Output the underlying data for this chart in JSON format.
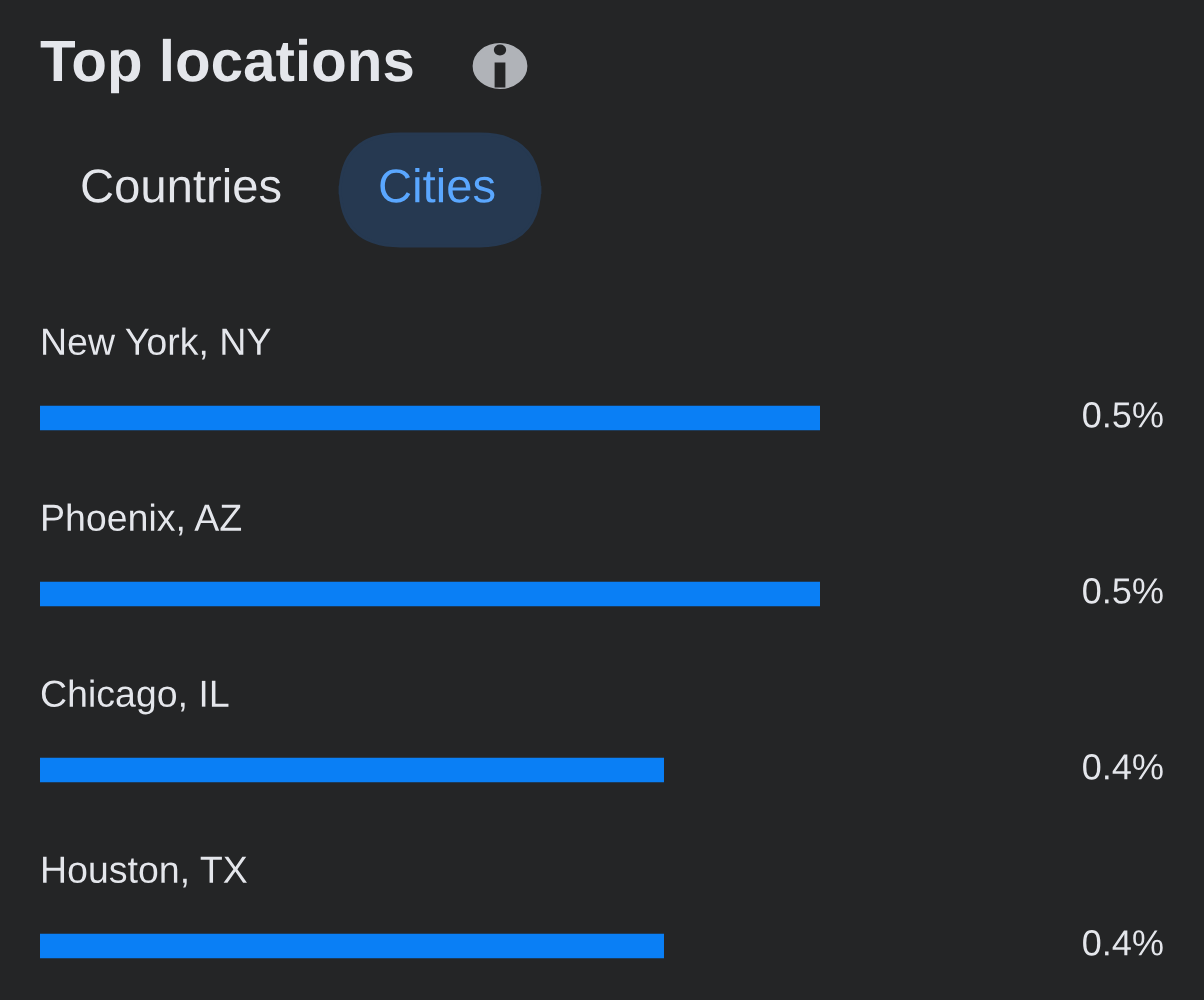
{
  "chart_data": {
    "type": "bar",
    "orientation": "horizontal",
    "title": "Top locations",
    "annotations": [
      "Countries",
      "Cities"
    ],
    "categories": [
      "New York, NY",
      "Phoenix, AZ",
      "Chicago, IL",
      "Houston, TX"
    ],
    "values": [
      0.5,
      0.5,
      0.4,
      0.4
    ],
    "value_labels": [
      "0.5%",
      "0.5%",
      "0.4%",
      "0.4%"
    ],
    "color": "#0a7ff5",
    "xlim": [
      0,
      0.5
    ],
    "tick_labels": false
  }
}
